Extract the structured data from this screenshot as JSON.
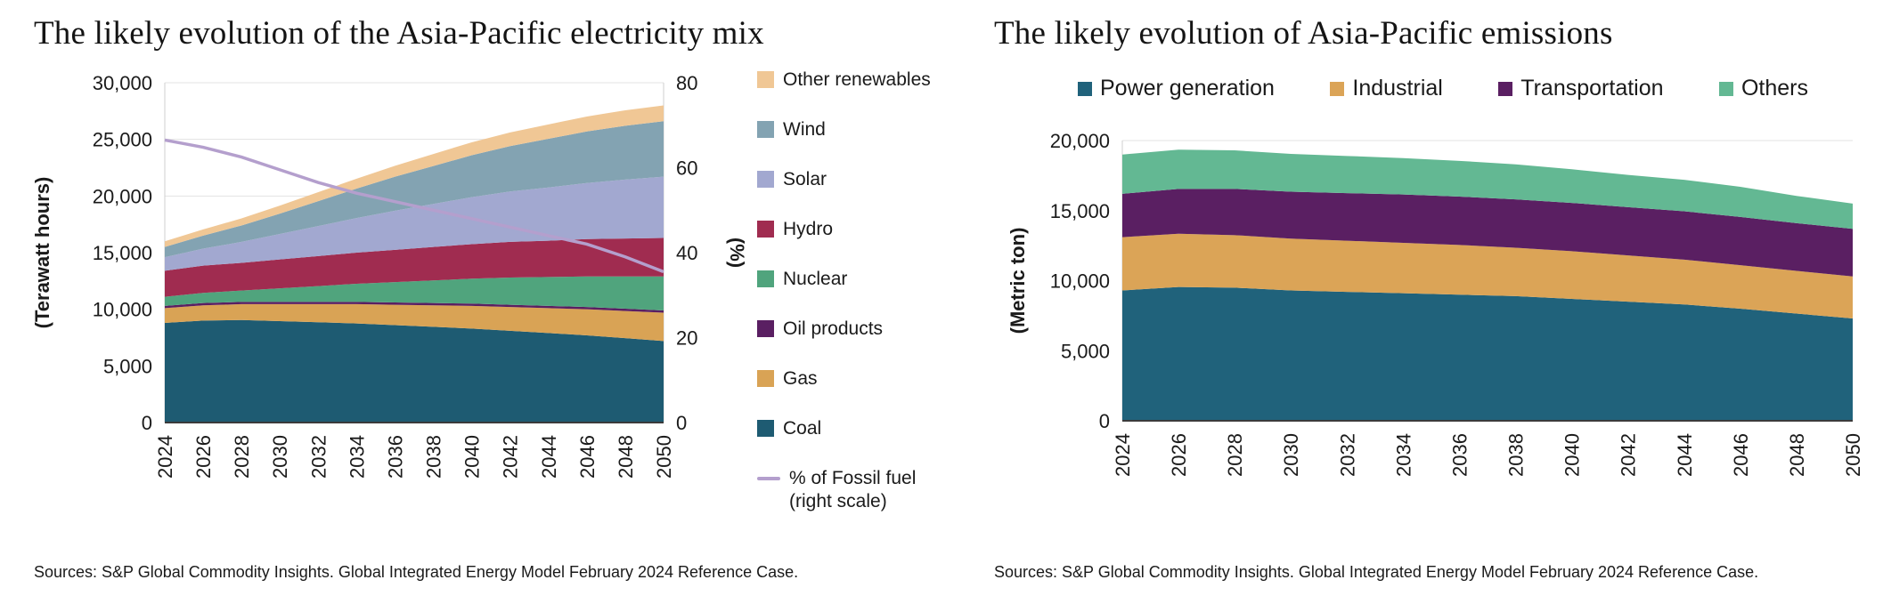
{
  "page": {
    "background": "#ffffff"
  },
  "chart_data": [
    {
      "type": "area",
      "stacked": true,
      "title": "The likely evolution of the Asia-Pacific electricity mix",
      "ylabel": "(Terawatt hours)",
      "y2label": "(%)",
      "ylim": [
        0,
        30000
      ],
      "yticks": [
        0,
        5000,
        10000,
        15000,
        20000,
        25000,
        30000
      ],
      "y2lim": [
        0,
        80
      ],
      "y2ticks": [
        0,
        20,
        40,
        60,
        80
      ],
      "grid": "horizontal",
      "legend_position": "right",
      "x": [
        2024,
        2026,
        2028,
        2030,
        2032,
        2034,
        2036,
        2038,
        2040,
        2042,
        2044,
        2046,
        2048,
        2050
      ],
      "series": [
        {
          "name": "Coal",
          "color": "#1E5B72",
          "values": [
            8800,
            9000,
            9050,
            8950,
            8850,
            8750,
            8600,
            8450,
            8300,
            8100,
            7900,
            7700,
            7450,
            7200
          ]
        },
        {
          "name": "Gas",
          "color": "#D9A355",
          "values": [
            1300,
            1350,
            1400,
            1500,
            1600,
            1700,
            1800,
            1900,
            2000,
            2100,
            2200,
            2300,
            2400,
            2500
          ]
        },
        {
          "name": "Oil products",
          "color": "#5A1F62",
          "values": [
            200,
            200,
            200,
            200,
            200,
            200,
            200,
            200,
            200,
            200,
            200,
            200,
            200,
            200
          ]
        },
        {
          "name": "Nuclear",
          "color": "#50A47D",
          "values": [
            800,
            900,
            1000,
            1200,
            1400,
            1600,
            1800,
            2000,
            2200,
            2400,
            2550,
            2700,
            2850,
            3000
          ]
        },
        {
          "name": "Hydro",
          "color": "#A02C50",
          "values": [
            2300,
            2400,
            2450,
            2550,
            2650,
            2750,
            2850,
            2950,
            3050,
            3150,
            3200,
            3300,
            3350,
            3400
          ]
        },
        {
          "name": "Solar",
          "color": "#A2A8D0",
          "values": [
            1200,
            1500,
            1850,
            2250,
            2650,
            3050,
            3450,
            3800,
            4150,
            4450,
            4700,
            4950,
            5200,
            5400
          ]
        },
        {
          "name": "Wind",
          "color": "#83A3B2",
          "values": [
            900,
            1150,
            1450,
            1800,
            2200,
            2600,
            3000,
            3350,
            3700,
            4000,
            4300,
            4550,
            4750,
            4900
          ]
        },
        {
          "name": "Other renewables",
          "color": "#F0C795",
          "values": [
            500,
            550,
            620,
            700,
            790,
            880,
            970,
            1060,
            1140,
            1210,
            1270,
            1320,
            1370,
            1400
          ]
        }
      ],
      "line_series": {
        "name": "% of Fossil fuel (right scale)",
        "axis": "y2",
        "color": "#B49FCD",
        "values": [
          66.5,
          64.8,
          62.5,
          59.5,
          56.5,
          54,
          52,
          50,
          48,
          46,
          44,
          42,
          39,
          35.5
        ]
      },
      "legend_order": [
        "Other renewables",
        "Wind",
        "Solar",
        "Hydro",
        "Nuclear",
        "Oil products",
        "Gas",
        "Coal",
        "% of Fossil fuel (right scale)"
      ],
      "source": "Sources: S&P Global Commodity Insights. Global Integrated Energy Model February 2024 Reference Case."
    },
    {
      "type": "area",
      "stacked": true,
      "title": "The likely evolution of Asia-Pacific emissions",
      "ylabel": "(Metric ton)",
      "ylim": [
        0,
        20000
      ],
      "yticks": [
        0,
        5000,
        10000,
        15000,
        20000
      ],
      "grid": "horizontal",
      "legend_position": "top",
      "x": [
        2024,
        2026,
        2028,
        2030,
        2032,
        2034,
        2036,
        2038,
        2040,
        2042,
        2044,
        2046,
        2048,
        2050
      ],
      "series": [
        {
          "name": "Power generation",
          "color": "#20627B",
          "values": [
            9300,
            9550,
            9500,
            9300,
            9200,
            9100,
            9000,
            8900,
            8700,
            8500,
            8300,
            8000,
            7650,
            7300
          ]
        },
        {
          "name": "Industrial",
          "color": "#DBA457",
          "values": [
            3800,
            3800,
            3750,
            3700,
            3650,
            3600,
            3550,
            3450,
            3400,
            3300,
            3200,
            3100,
            3050,
            3000
          ]
        },
        {
          "name": "Transportation",
          "color": "#5A1F62",
          "values": [
            3100,
            3200,
            3300,
            3350,
            3400,
            3450,
            3450,
            3450,
            3450,
            3450,
            3450,
            3450,
            3400,
            3400
          ]
        },
        {
          "name": "Others",
          "color": "#63B893",
          "values": [
            2800,
            2800,
            2750,
            2700,
            2650,
            2600,
            2550,
            2500,
            2400,
            2300,
            2250,
            2150,
            1950,
            1800
          ]
        }
      ],
      "source": "Sources: S&P Global Commodity Insights. Global Integrated Energy Model February 2024 Reference Case."
    }
  ]
}
